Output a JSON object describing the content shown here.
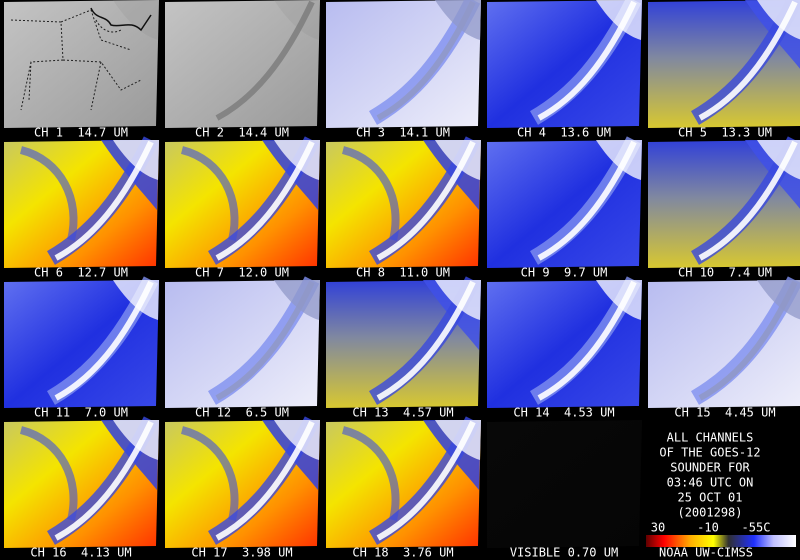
{
  "panels": [
    "CH 1  14.7 UM",
    "CH 2  14.4 UM",
    "CH 3  14.1 UM",
    "CH 4  13.6 UM",
    "CH 5  13.3 UM",
    "CH 6  12.7 UM",
    "CH 7  12.0 UM",
    "CH 8  11.0 UM",
    "CH 9  9.7 UM",
    "CH 10  7.4 UM",
    "CH 11  7.0 UM",
    "CH 12  6.5 UM",
    "CH 13  4.57 UM",
    "CH 14  4.53 UM",
    "CH 15  4.45 UM",
    "CH 16  4.13 UM",
    "CH 17  3.98 UM",
    "CH 18  3.76 UM",
    "VISIBLE 0.70 UM"
  ],
  "info": [
    "ALL CHANNELS",
    "OF THE GOES-12",
    "SOUNDER FOR",
    "03:46 UTC ON",
    "25 OCT 01",
    "(2001298)"
  ],
  "colorbar": {
    "labels": [
      "30",
      "-10",
      "-55C"
    ],
    "credit": "NOAA UW-CIMSS"
  }
}
